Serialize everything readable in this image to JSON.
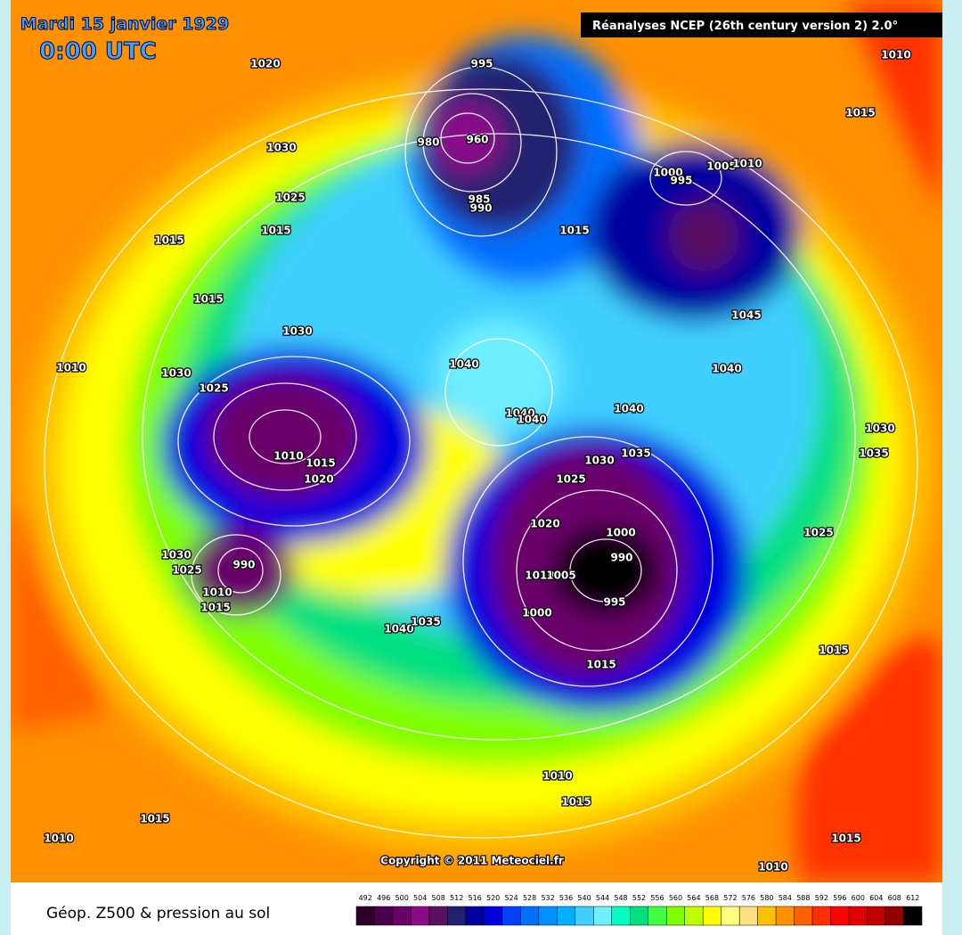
{
  "header": {
    "date": "Mardi 15 janvier 1929",
    "time": "0:00 UTC",
    "source": "Réanalyses NCEP (26th century version 2) 2.0°"
  },
  "copyright": "Copyright © 2011 Meteociel.fr",
  "isobar_labels": [
    1020,
    1030,
    1025,
    1015,
    1015,
    1015,
    1030,
    1010,
    1030,
    1025,
    1010,
    1015,
    1020,
    1030,
    1025,
    990,
    1010,
    1015,
    1040,
    1035,
    995,
    980,
    960,
    985,
    990,
    1015,
    1000,
    995,
    1005,
    1010,
    1045,
    1040,
    1040,
    1040,
    1040,
    1040,
    1035,
    1030,
    1025,
    1020,
    1000,
    990,
    1010,
    1005,
    1000,
    995,
    1015,
    1030,
    1035,
    1025,
    1015,
    1010,
    1015,
    1015,
    1010,
    1015,
    1010,
    1010,
    1015
  ],
  "legend": {
    "title": "Géop. Z500 & pression au sol",
    "ticks": [
      492,
      496,
      500,
      504,
      508,
      512,
      516,
      520,
      524,
      528,
      532,
      536,
      540,
      544,
      548,
      552,
      556,
      560,
      564,
      568,
      572,
      576,
      580,
      584,
      588,
      592,
      596,
      600,
      604,
      608,
      612
    ],
    "colors": [
      "#2a002a",
      "#4a004a",
      "#6a006a",
      "#8a0a8a",
      "#5a1060",
      "#202070",
      "#0000a0",
      "#0000e0",
      "#0040ff",
      "#0070ff",
      "#0090ff",
      "#00b0ff",
      "#40d0ff",
      "#70f0ff",
      "#00ffc0",
      "#00e080",
      "#40ff40",
      "#80ff00",
      "#c0ff00",
      "#ffff00",
      "#ffff80",
      "#ffe080",
      "#ffc000",
      "#ff9000",
      "#ff6000",
      "#ff3000",
      "#ff0000",
      "#e00000",
      "#c00000",
      "#900000",
      "#000000"
    ]
  }
}
